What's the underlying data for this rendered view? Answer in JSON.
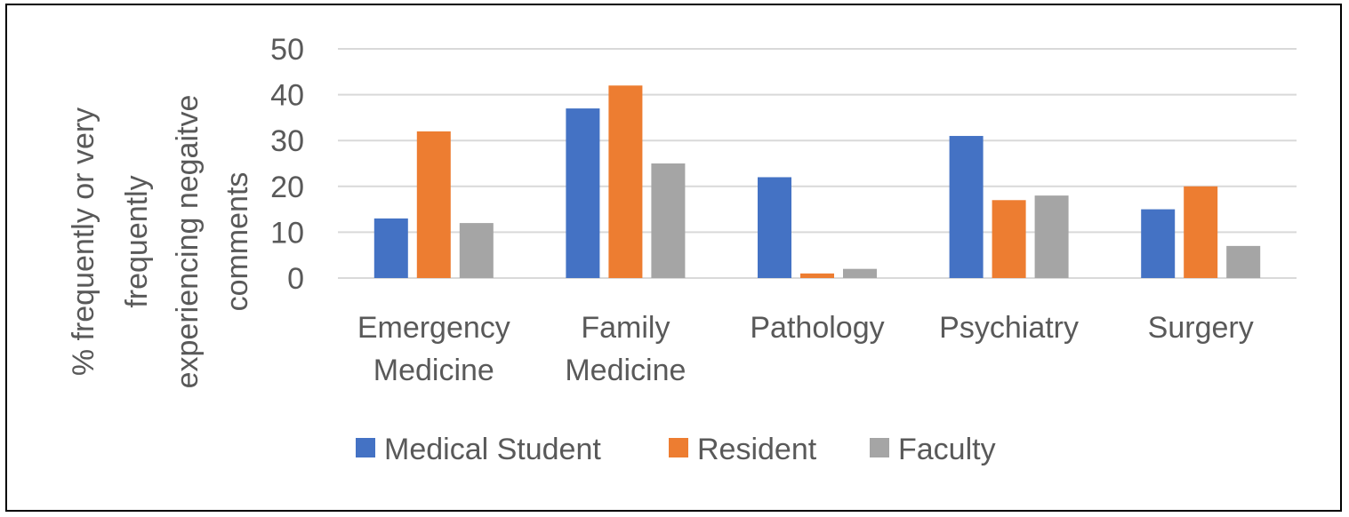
{
  "chart_data": {
    "type": "bar",
    "categories": [
      [
        "Emergency",
        "Medicine"
      ],
      [
        "Family",
        "Medicine"
      ],
      [
        "Pathology"
      ],
      [
        "Psychiatry"
      ],
      [
        "Surgery"
      ]
    ],
    "series": [
      {
        "name": "Medical Student",
        "color": "#4472C4",
        "values": [
          13,
          37,
          22,
          31,
          15
        ]
      },
      {
        "name": "Resident",
        "color": "#ED7D31",
        "values": [
          32,
          42,
          1,
          17,
          20
        ]
      },
      {
        "name": "Faculty",
        "color": "#A5A5A5",
        "values": [
          12,
          25,
          2,
          18,
          7
        ]
      }
    ],
    "ylabel": [
      "% frequently or very",
      "frequently",
      "experiencing negaitve",
      "comments"
    ],
    "xlabel": "",
    "ylim": [
      0,
      50
    ],
    "yticks": [
      0,
      10,
      20,
      30,
      40,
      50
    ],
    "grid": true,
    "legend_position": "bottom"
  }
}
